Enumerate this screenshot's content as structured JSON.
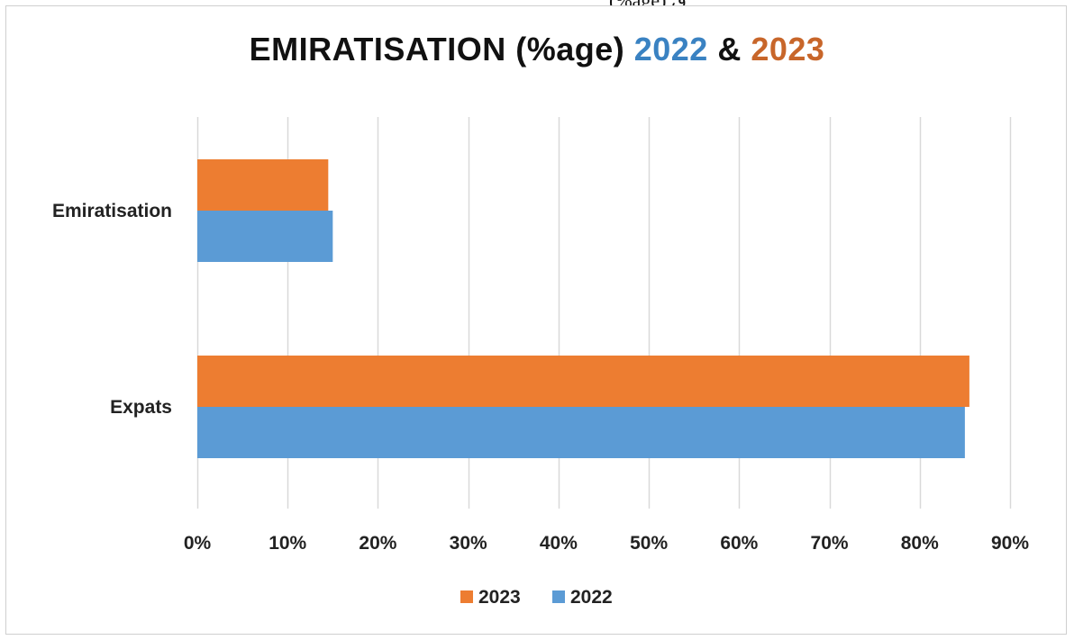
{
  "top_fragment": "(%age) ق",
  "chart_data": {
    "type": "bar",
    "orientation": "horizontal",
    "title": {
      "prefix": "EMIRATISATION (%age) ",
      "year_a": "2022",
      "joiner": " & ",
      "year_b": "2023"
    },
    "categories": [
      "Emiratisation",
      "Expats"
    ],
    "series": [
      {
        "name": "2023",
        "color": "#ed7d31",
        "values": [
          0.145,
          0.855
        ]
      },
      {
        "name": "2022",
        "color": "#5b9bd5",
        "values": [
          0.15,
          0.85
        ]
      }
    ],
    "xlim": [
      0,
      0.9
    ],
    "xticks": [
      0,
      0.1,
      0.2,
      0.3,
      0.4,
      0.5,
      0.6,
      0.7,
      0.8,
      0.9
    ],
    "xtick_labels": [
      "0%",
      "10%",
      "20%",
      "30%",
      "40%",
      "50%",
      "60%",
      "70%",
      "80%",
      "90%"
    ],
    "grid": "vertical",
    "legend_position": "bottom",
    "title_colors": {
      "year_a": "#3a82c2",
      "year_b": "#c8662a"
    }
  }
}
